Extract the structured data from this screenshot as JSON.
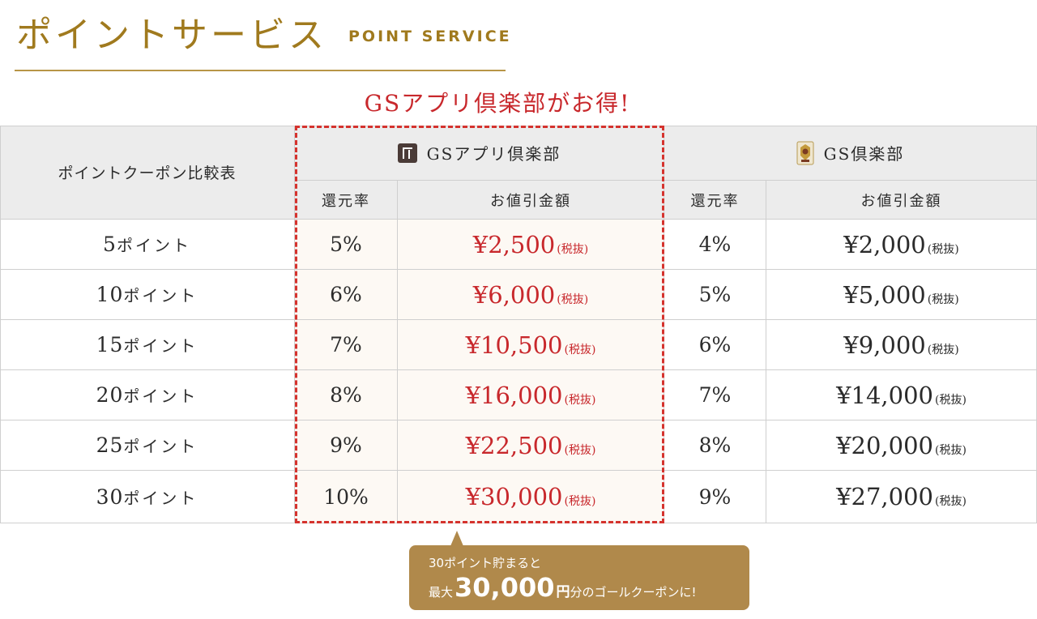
{
  "header": {
    "title": "ポイントサービス",
    "subtitle": "POINT SERVICE"
  },
  "promo": "GSアプリ倶楽部がお得!",
  "table": {
    "corner_label": "ポイントクーポン比較表",
    "groups": [
      {
        "label": "GSアプリ倶楽部",
        "icon": "app-logo-icon"
      },
      {
        "label": "GS倶楽部",
        "icon": "club-crest-icon"
      }
    ],
    "sub_headers": {
      "rate": "還元率",
      "discount": "お値引金額"
    },
    "tax_note": "(税抜)",
    "rows": [
      {
        "points": "5",
        "unit": "ポイント",
        "app_rate": "5%",
        "app_amount": "¥2,500",
        "club_rate": "4%",
        "club_amount": "¥2,000"
      },
      {
        "points": "10",
        "unit": "ポイント",
        "app_rate": "6%",
        "app_amount": "¥6,000",
        "club_rate": "5%",
        "club_amount": "¥5,000"
      },
      {
        "points": "15",
        "unit": "ポイント",
        "app_rate": "7%",
        "app_amount": "¥10,500",
        "club_rate": "6%",
        "club_amount": "¥9,000"
      },
      {
        "points": "20",
        "unit": "ポイント",
        "app_rate": "8%",
        "app_amount": "¥16,000",
        "club_rate": "7%",
        "club_amount": "¥14,000"
      },
      {
        "points": "25",
        "unit": "ポイント",
        "app_rate": "9%",
        "app_amount": "¥22,500",
        "club_rate": "8%",
        "club_amount": "¥20,000"
      },
      {
        "points": "30",
        "unit": "ポイント",
        "app_rate": "10%",
        "app_amount": "¥30,000",
        "club_rate": "9%",
        "club_amount": "¥27,000"
      }
    ]
  },
  "callout": {
    "line1": "30ポイント貯まると",
    "prefix": "最大",
    "big_number": "30,000",
    "yen": "円",
    "suffix": "分のゴールクーポンに!"
  },
  "colors": {
    "accent_gold": "#a07a1e",
    "highlight_red": "#c8282c",
    "callout_bg": "#b0894b"
  }
}
